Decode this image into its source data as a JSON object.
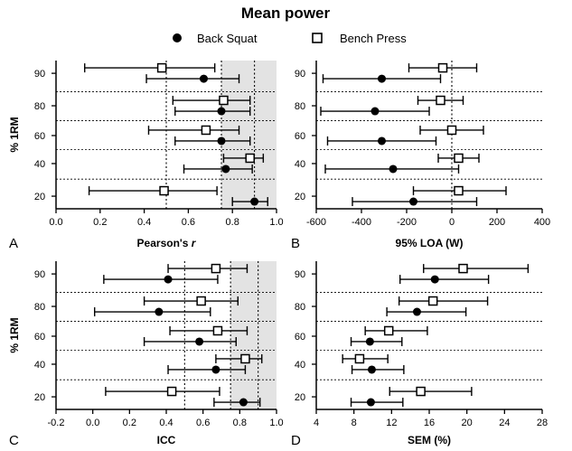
{
  "figure": {
    "title": "Mean power",
    "legend": [
      {
        "label": "Back Squat",
        "marker": "filled-circle"
      },
      {
        "label": "Bench Press",
        "marker": "open-square"
      }
    ],
    "colors": {
      "shade": "#e3e3e3",
      "marker": "#000000",
      "background": "#ffffff"
    }
  },
  "chart_data": [
    {
      "type": "scatter",
      "panel_letter": "A",
      "xlabel": "Pearson's r",
      "ylabel": "% 1RM",
      "xlim": [
        0.0,
        1.0
      ],
      "xticks": [
        "0.0",
        "0.2",
        "0.4",
        "0.6",
        "0.8",
        "1.0"
      ],
      "xtick_values": [
        0.0,
        0.2,
        0.4,
        0.6,
        0.8,
        1.0
      ],
      "categories": [
        "90",
        "80",
        "60",
        "40",
        "20"
      ],
      "shaded_region": [
        0.75,
        1.0
      ],
      "reference_lines": [
        0.5,
        0.75,
        0.9
      ],
      "series": [
        {
          "name": "Bench Press",
          "marker": "open-square",
          "points": [
            {
              "category": "90",
              "value": 0.48,
              "ci": [
                0.13,
                0.72
              ]
            },
            {
              "category": "80",
              "value": 0.76,
              "ci": [
                0.53,
                0.88
              ]
            },
            {
              "category": "60",
              "value": 0.68,
              "ci": [
                0.42,
                0.83
              ]
            },
            {
              "category": "40",
              "value": 0.88,
              "ci": [
                0.76,
                0.94
              ]
            },
            {
              "category": "20",
              "value": 0.49,
              "ci": [
                0.15,
                0.73
              ]
            }
          ]
        },
        {
          "name": "Back Squat",
          "marker": "filled-circle",
          "points": [
            {
              "category": "90",
              "value": 0.67,
              "ci": [
                0.41,
                0.83
              ]
            },
            {
              "category": "80",
              "value": 0.75,
              "ci": [
                0.54,
                0.88
              ]
            },
            {
              "category": "60",
              "value": 0.75,
              "ci": [
                0.54,
                0.88
              ]
            },
            {
              "category": "40",
              "value": 0.77,
              "ci": [
                0.58,
                0.89
              ]
            },
            {
              "category": "20",
              "value": 0.9,
              "ci": [
                0.8,
                0.96
              ]
            }
          ]
        }
      ]
    },
    {
      "type": "scatter",
      "panel_letter": "B",
      "xlabel": "95% LOA (W)",
      "ylabel": "",
      "xlim": [
        -600,
        400
      ],
      "xticks": [
        "-600",
        "-400",
        "-200",
        "0",
        "200",
        "400"
      ],
      "xtick_values": [
        -600,
        -400,
        -200,
        0,
        200,
        400
      ],
      "categories": [
        "90",
        "80",
        "60",
        "40",
        "20"
      ],
      "reference_lines": [
        0
      ],
      "series": [
        {
          "name": "Bench Press",
          "marker": "open-square",
          "points": [
            {
              "category": "90",
              "value": -40,
              "ci": [
                -190,
                110
              ]
            },
            {
              "category": "80",
              "value": -50,
              "ci": [
                -150,
                50
              ]
            },
            {
              "category": "60",
              "value": 0,
              "ci": [
                -140,
                140
              ]
            },
            {
              "category": "40",
              "value": 30,
              "ci": [
                -60,
                120
              ]
            },
            {
              "category": "20",
              "value": 30,
              "ci": [
                -170,
                240
              ]
            }
          ]
        },
        {
          "name": "Back Squat",
          "marker": "filled-circle",
          "points": [
            {
              "category": "90",
              "value": -310,
              "ci": [
                -570,
                -50
              ]
            },
            {
              "category": "80",
              "value": -340,
              "ci": [
                -580,
                -100
              ]
            },
            {
              "category": "60",
              "value": -310,
              "ci": [
                -550,
                -70
              ]
            },
            {
              "category": "40",
              "value": -260,
              "ci": [
                -560,
                30
              ]
            },
            {
              "category": "20",
              "value": -170,
              "ci": [
                -440,
                110
              ]
            }
          ]
        }
      ]
    },
    {
      "type": "scatter",
      "panel_letter": "C",
      "xlabel": "ICC",
      "ylabel": "% 1RM",
      "xlim": [
        -0.2,
        1.0
      ],
      "xticks": [
        "-0.2",
        "0.0",
        "0.2",
        "0.4",
        "0.6",
        "0.8",
        "1.0"
      ],
      "xtick_values": [
        -0.2,
        0.0,
        0.2,
        0.4,
        0.6,
        0.8,
        1.0
      ],
      "categories": [
        "90",
        "80",
        "60",
        "40",
        "20"
      ],
      "shaded_region": [
        0.75,
        1.0
      ],
      "reference_lines": [
        0.5,
        0.75,
        0.9
      ],
      "series": [
        {
          "name": "Bench Press",
          "marker": "open-square",
          "points": [
            {
              "category": "90",
              "value": 0.67,
              "ci": [
                0.41,
                0.84
              ]
            },
            {
              "category": "80",
              "value": 0.59,
              "ci": [
                0.28,
                0.79
              ]
            },
            {
              "category": "60",
              "value": 0.68,
              "ci": [
                0.42,
                0.84
              ]
            },
            {
              "category": "40",
              "value": 0.83,
              "ci": [
                0.67,
                0.92
              ]
            },
            {
              "category": "20",
              "value": 0.43,
              "ci": [
                0.07,
                0.69
              ]
            }
          ]
        },
        {
          "name": "Back Squat",
          "marker": "filled-circle",
          "points": [
            {
              "category": "90",
              "value": 0.41,
              "ci": [
                0.06,
                0.68
              ]
            },
            {
              "category": "80",
              "value": 0.36,
              "ci": [
                0.01,
                0.64
              ]
            },
            {
              "category": "60",
              "value": 0.58,
              "ci": [
                0.28,
                0.78
              ]
            },
            {
              "category": "40",
              "value": 0.67,
              "ci": [
                0.41,
                0.83
              ]
            },
            {
              "category": "20",
              "value": 0.82,
              "ci": [
                0.66,
                0.91
              ]
            }
          ]
        }
      ]
    },
    {
      "type": "scatter",
      "panel_letter": "D",
      "xlabel": "SEM (%)",
      "ylabel": "",
      "xlim": [
        4,
        28
      ],
      "xticks": [
        "4",
        "8",
        "12",
        "16",
        "20",
        "24",
        "28"
      ],
      "xtick_values": [
        4,
        8,
        12,
        16,
        20,
        24,
        28
      ],
      "categories": [
        "90",
        "80",
        "60",
        "40",
        "20"
      ],
      "reference_lines": [],
      "series": [
        {
          "name": "Bench Press",
          "marker": "open-square",
          "points": [
            {
              "category": "90",
              "value": 19.6,
              "ci": [
                15.4,
                26.5
              ]
            },
            {
              "category": "80",
              "value": 16.4,
              "ci": [
                12.8,
                22.2
              ]
            },
            {
              "category": "60",
              "value": 11.7,
              "ci": [
                9.2,
                15.8
              ]
            },
            {
              "category": "40",
              "value": 8.6,
              "ci": [
                6.8,
                11.6
              ]
            },
            {
              "category": "20",
              "value": 15.1,
              "ci": [
                11.8,
                20.5
              ]
            }
          ]
        },
        {
          "name": "Back Squat",
          "marker": "filled-circle",
          "points": [
            {
              "category": "90",
              "value": 16.6,
              "ci": [
                12.9,
                22.3
              ]
            },
            {
              "category": "80",
              "value": 14.7,
              "ci": [
                11.5,
                19.9
              ]
            },
            {
              "category": "60",
              "value": 9.7,
              "ci": [
                7.7,
                13.1
              ]
            },
            {
              "category": "40",
              "value": 9.9,
              "ci": [
                7.8,
                13.3
              ]
            },
            {
              "category": "20",
              "value": 9.8,
              "ci": [
                7.7,
                13.2
              ]
            }
          ]
        }
      ]
    }
  ]
}
